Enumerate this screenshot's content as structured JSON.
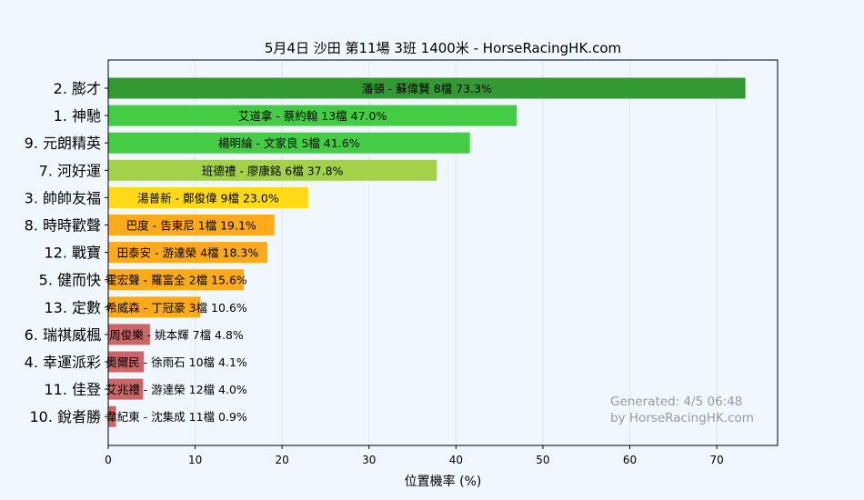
{
  "chart_data": {
    "type": "bar",
    "orientation": "horizontal",
    "title": "5月4日  沙田  第11場  3班  1400米 - HorseRacingHK.com",
    "xlabel": "位置機率 (%)",
    "ylabel": "",
    "xlim": [
      0,
      77
    ],
    "xticks": [
      0,
      10,
      20,
      30,
      40,
      50,
      60,
      70
    ],
    "grid": "vertical",
    "categories": [
      "2. 膨才",
      "1. 神馳",
      "9. 元朗精英",
      "7. 河好運",
      "3. 帥帥友福",
      "8. 時時歡聲",
      "12. 戰寶",
      "5. 健而快",
      "13. 定數",
      "6. 瑞祺威楓",
      "4. 幸運派彩",
      "11. 佳登",
      "10. 銳者勝"
    ],
    "values": [
      73.3,
      47.0,
      41.6,
      37.8,
      23.0,
      19.1,
      18.3,
      15.6,
      10.6,
      4.8,
      4.1,
      4.0,
      0.9
    ],
    "bar_labels": [
      "潘頓 - 蘇偉賢 8檔  73.3%",
      "艾道拿 - 蔡約翰 13檔  47.0%",
      "楊明綸 - 文家良 5檔  41.6%",
      "班德禮 - 廖康銘 6檔  37.8%",
      "湯普新 - 鄭俊偉 9檔  23.0%",
      "巴度 - 告東尼 1檔  19.1%",
      "田泰安 - 游達榮 4檔  18.3%",
      "霍宏聲 - 羅富全 2檔  15.6%",
      "希威森 - 丁冠豪 3檔  10.6%",
      "周俊樂 - 姚本輝 7檔  4.8%",
      "奧爾民 - 徐雨石 10檔  4.1%",
      "艾兆禮 - 游達榮 12檔  4.0%",
      "韋紀東 - 沈集成 11檔  0.9%"
    ],
    "bar_colors": [
      "#339933",
      "#44cc44",
      "#44cc44",
      "#a3d14a",
      "#ffd918",
      "#ffaa1a",
      "#ffaa1a",
      "#ffaa1a",
      "#ffaa1a",
      "#cc6666",
      "#cc6666",
      "#cc6666",
      "#cc6666"
    ],
    "watermark": [
      "Generated: 4/5 06:48",
      "by HorseRacingHK.com"
    ]
  },
  "colors": {
    "background": "#f0f7ff",
    "plot_background": "#f0f7ff",
    "grid": "#dde4ec",
    "watermark": "#999999"
  }
}
